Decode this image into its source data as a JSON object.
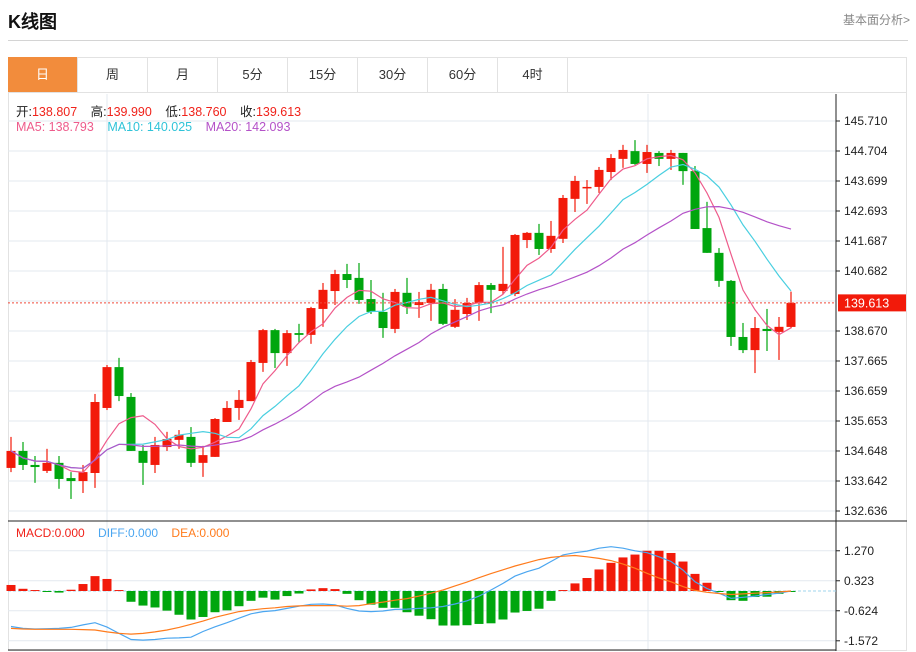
{
  "header": {
    "title": "K线图",
    "link": "基本面分析>"
  },
  "tabs": [
    {
      "label": "日",
      "active": true
    },
    {
      "label": "周"
    },
    {
      "label": "月"
    },
    {
      "label": "5分"
    },
    {
      "label": "15分"
    },
    {
      "label": "30分"
    },
    {
      "label": "60分"
    },
    {
      "label": "4时"
    }
  ],
  "ohlc_legend": {
    "open_label": "开:",
    "open": "138.807",
    "high_label": "高:",
    "high": "139.990",
    "low_label": "低:",
    "low": "138.760",
    "close_label": "收:",
    "close": "139.613"
  },
  "ma_legend": {
    "ma5": "MA5: 138.793",
    "ma10": "MA10: 140.025",
    "ma20": "MA20: 142.093"
  },
  "macd_legend": {
    "macd": "MACD:0.000",
    "diff": "DIFF:0.000",
    "dea": "DEA:0.000"
  },
  "current_price": "139.613",
  "colors": {
    "up": "#f21a0a",
    "down": "#00a60e",
    "ma5": "#ee5b8b",
    "ma10": "#49cfe0",
    "ma20": "#b452c8",
    "diff": "#4ba6f0",
    "dea": "#ff7b1c",
    "accent": "#f28c3c"
  },
  "chart_data": [
    {
      "type": "candlestick",
      "title": "K线图",
      "ylim": [
        132.3,
        146.5
      ],
      "y_ticks": [
        "145.710",
        "144.704",
        "143.699",
        "142.693",
        "141.687",
        "140.682",
        "138.670",
        "137.665",
        "136.659",
        "135.653",
        "134.648",
        "133.642",
        "132.636"
      ],
      "y_tick_values": [
        145.71,
        144.704,
        143.699,
        142.693,
        141.687,
        140.682,
        138.67,
        137.665,
        136.659,
        135.653,
        134.648,
        133.642,
        132.636
      ],
      "grid_extra": [
        139.676
      ],
      "ma_periods": [
        5,
        10,
        20
      ],
      "ohlc": [
        [
          134.08,
          135.12,
          133.94,
          134.65
        ],
        [
          134.65,
          134.95,
          134.01,
          134.18
        ],
        [
          134.18,
          134.48,
          133.58,
          134.11
        ],
        [
          133.98,
          134.72,
          133.91,
          134.25
        ],
        [
          134.25,
          134.48,
          133.38,
          133.71
        ],
        [
          133.74,
          133.94,
          133.04,
          133.64
        ],
        [
          133.64,
          134.18,
          133.24,
          133.94
        ],
        [
          133.91,
          136.56,
          133.41,
          136.29
        ],
        [
          136.09,
          137.53,
          136.02,
          137.46
        ],
        [
          137.46,
          137.77,
          136.32,
          136.49
        ],
        [
          136.46,
          136.59,
          134.65,
          134.65
        ],
        [
          134.65,
          134.85,
          133.51,
          134.25
        ],
        [
          134.18,
          135.12,
          133.91,
          134.85
        ],
        [
          134.78,
          135.29,
          134.65,
          135.05
        ],
        [
          135.02,
          135.35,
          134.72,
          135.19
        ],
        [
          135.12,
          135.45,
          134.11,
          134.25
        ],
        [
          134.25,
          134.82,
          133.78,
          134.51
        ],
        [
          134.45,
          135.75,
          134.45,
          135.72
        ],
        [
          135.62,
          136.32,
          135.62,
          136.09
        ],
        [
          136.09,
          136.69,
          135.69,
          136.36
        ],
        [
          136.32,
          137.7,
          136.32,
          137.63
        ],
        [
          137.6,
          138.74,
          137.3,
          138.7
        ],
        [
          138.7,
          138.74,
          137.43,
          137.93
        ],
        [
          137.93,
          138.7,
          137.5,
          138.6
        ],
        [
          138.6,
          138.91,
          138.27,
          138.54
        ],
        [
          138.54,
          139.48,
          138.24,
          139.44
        ],
        [
          139.41,
          140.28,
          138.81,
          140.05
        ],
        [
          140.01,
          140.72,
          139.54,
          140.58
        ],
        [
          140.58,
          140.92,
          140.11,
          140.38
        ],
        [
          140.45,
          140.95,
          139.58,
          139.71
        ],
        [
          139.74,
          140.38,
          139.24,
          139.31
        ],
        [
          139.31,
          139.95,
          138.44,
          138.77
        ],
        [
          138.74,
          140.08,
          138.6,
          139.98
        ],
        [
          139.95,
          140.45,
          139.24,
          139.48
        ],
        [
          139.54,
          139.98,
          139.11,
          139.64
        ],
        [
          139.61,
          140.25,
          139.01,
          140.05
        ],
        [
          140.08,
          140.25,
          138.87,
          138.91
        ],
        [
          138.81,
          139.74,
          138.77,
          139.38
        ],
        [
          139.24,
          139.78,
          139.04,
          139.61
        ],
        [
          139.61,
          140.31,
          139.01,
          140.21
        ],
        [
          140.21,
          140.28,
          139.27,
          140.05
        ],
        [
          140.01,
          141.49,
          139.91,
          140.25
        ],
        [
          139.91,
          141.92,
          139.84,
          141.89
        ],
        [
          141.72,
          141.99,
          141.45,
          141.96
        ],
        [
          141.96,
          142.26,
          141.22,
          141.42
        ],
        [
          141.42,
          142.36,
          141.29,
          141.86
        ],
        [
          141.76,
          143.23,
          141.62,
          143.13
        ],
        [
          143.1,
          143.87,
          142.66,
          143.7
        ],
        [
          143.46,
          143.73,
          142.93,
          143.5
        ],
        [
          143.5,
          144.17,
          143.3,
          144.07
        ],
        [
          144.0,
          144.6,
          143.73,
          144.47
        ],
        [
          144.44,
          144.91,
          144.14,
          144.74
        ],
        [
          144.7,
          145.07,
          144.24,
          144.27
        ],
        [
          144.27,
          144.91,
          143.97,
          144.67
        ],
        [
          144.64,
          144.7,
          144.2,
          144.44
        ],
        [
          144.44,
          144.74,
          144.07,
          144.64
        ],
        [
          144.64,
          144.64,
          143.57,
          144.03
        ],
        [
          144.03,
          144.2,
          142.09,
          142.09
        ],
        [
          142.12,
          143.0,
          141.29,
          141.29
        ],
        [
          141.29,
          141.45,
          140.15,
          140.35
        ],
        [
          140.35,
          140.38,
          138.17,
          138.47
        ],
        [
          138.47,
          138.94,
          137.93,
          138.03
        ],
        [
          138.03,
          139.14,
          137.26,
          138.77
        ],
        [
          138.74,
          139.41,
          138.0,
          138.67
        ],
        [
          138.64,
          139.14,
          137.7,
          138.81
        ],
        [
          138.807,
          139.99,
          138.76,
          139.613
        ]
      ]
    },
    {
      "type": "bar+line",
      "title": "MACD",
      "ylim": [
        -1.9,
        1.75
      ],
      "y_ticks": [
        "1.270",
        "0.323",
        "-0.624",
        "-1.572"
      ],
      "y_tick_values": [
        1.27,
        0.323,
        -0.624,
        -1.572
      ],
      "macd": [
        0.19,
        0.07,
        0.03,
        -0.01,
        -0.05,
        0.04,
        0.22,
        0.47,
        0.38,
        0.03,
        -0.34,
        -0.46,
        -0.52,
        -0.62,
        -0.75,
        -0.9,
        -0.82,
        -0.67,
        -0.61,
        -0.48,
        -0.31,
        -0.21,
        -0.27,
        -0.16,
        -0.08,
        0.05,
        0.09,
        0.06,
        -0.09,
        -0.29,
        -0.43,
        -0.53,
        -0.53,
        -0.67,
        -0.78,
        -0.89,
        -1.09,
        -1.09,
        -1.08,
        -1.04,
        -1.02,
        -0.9,
        -0.68,
        -0.63,
        -0.56,
        -0.31,
        0.03,
        0.24,
        0.41,
        0.68,
        0.89,
        1.06,
        1.15,
        1.27,
        1.27,
        1.2,
        0.93,
        0.54,
        0.26,
        -0.02,
        -0.29,
        -0.31,
        -0.19,
        -0.18,
        -0.09,
        -0.01
      ],
      "diff": [
        -1.12,
        -1.18,
        -1.2,
        -1.19,
        -1.18,
        -1.15,
        -1.07,
        -1.0,
        -1.14,
        -1.34,
        -1.53,
        -1.55,
        -1.53,
        -1.49,
        -1.48,
        -1.46,
        -1.28,
        -1.13,
        -1.0,
        -0.86,
        -0.72,
        -0.65,
        -0.62,
        -0.55,
        -0.48,
        -0.42,
        -0.41,
        -0.44,
        -0.55,
        -0.63,
        -0.65,
        -0.63,
        -0.58,
        -0.57,
        -0.55,
        -0.53,
        -0.49,
        -0.41,
        -0.31,
        -0.16,
        0.03,
        0.24,
        0.47,
        0.61,
        0.72,
        0.93,
        1.14,
        1.21,
        1.26,
        1.35,
        1.4,
        1.35,
        1.27,
        1.21,
        1.08,
        0.93,
        0.66,
        0.29,
        0.08,
        -0.07,
        -0.23,
        -0.2,
        -0.16,
        -0.11,
        -0.07,
        0.0
      ],
      "dea": [
        -1.18,
        -1.2,
        -1.21,
        -1.21,
        -1.21,
        -1.21,
        -1.22,
        -1.23,
        -1.29,
        -1.34,
        -1.36,
        -1.34,
        -1.29,
        -1.23,
        -1.15,
        -1.05,
        -0.95,
        -0.83,
        -0.74,
        -0.65,
        -0.6,
        -0.56,
        -0.53,
        -0.49,
        -0.47,
        -0.46,
        -0.46,
        -0.46,
        -0.48,
        -0.46,
        -0.4,
        -0.35,
        -0.29,
        -0.24,
        -0.16,
        -0.07,
        0.03,
        0.16,
        0.28,
        0.42,
        0.55,
        0.67,
        0.79,
        0.89,
        0.99,
        1.06,
        1.1,
        1.12,
        1.08,
        1.03,
        0.96,
        0.85,
        0.72,
        0.56,
        0.41,
        0.29,
        0.14,
        0.02,
        -0.04,
        -0.08,
        -0.11,
        -0.09,
        -0.07,
        -0.05,
        -0.03,
        0.0
      ]
    }
  ]
}
